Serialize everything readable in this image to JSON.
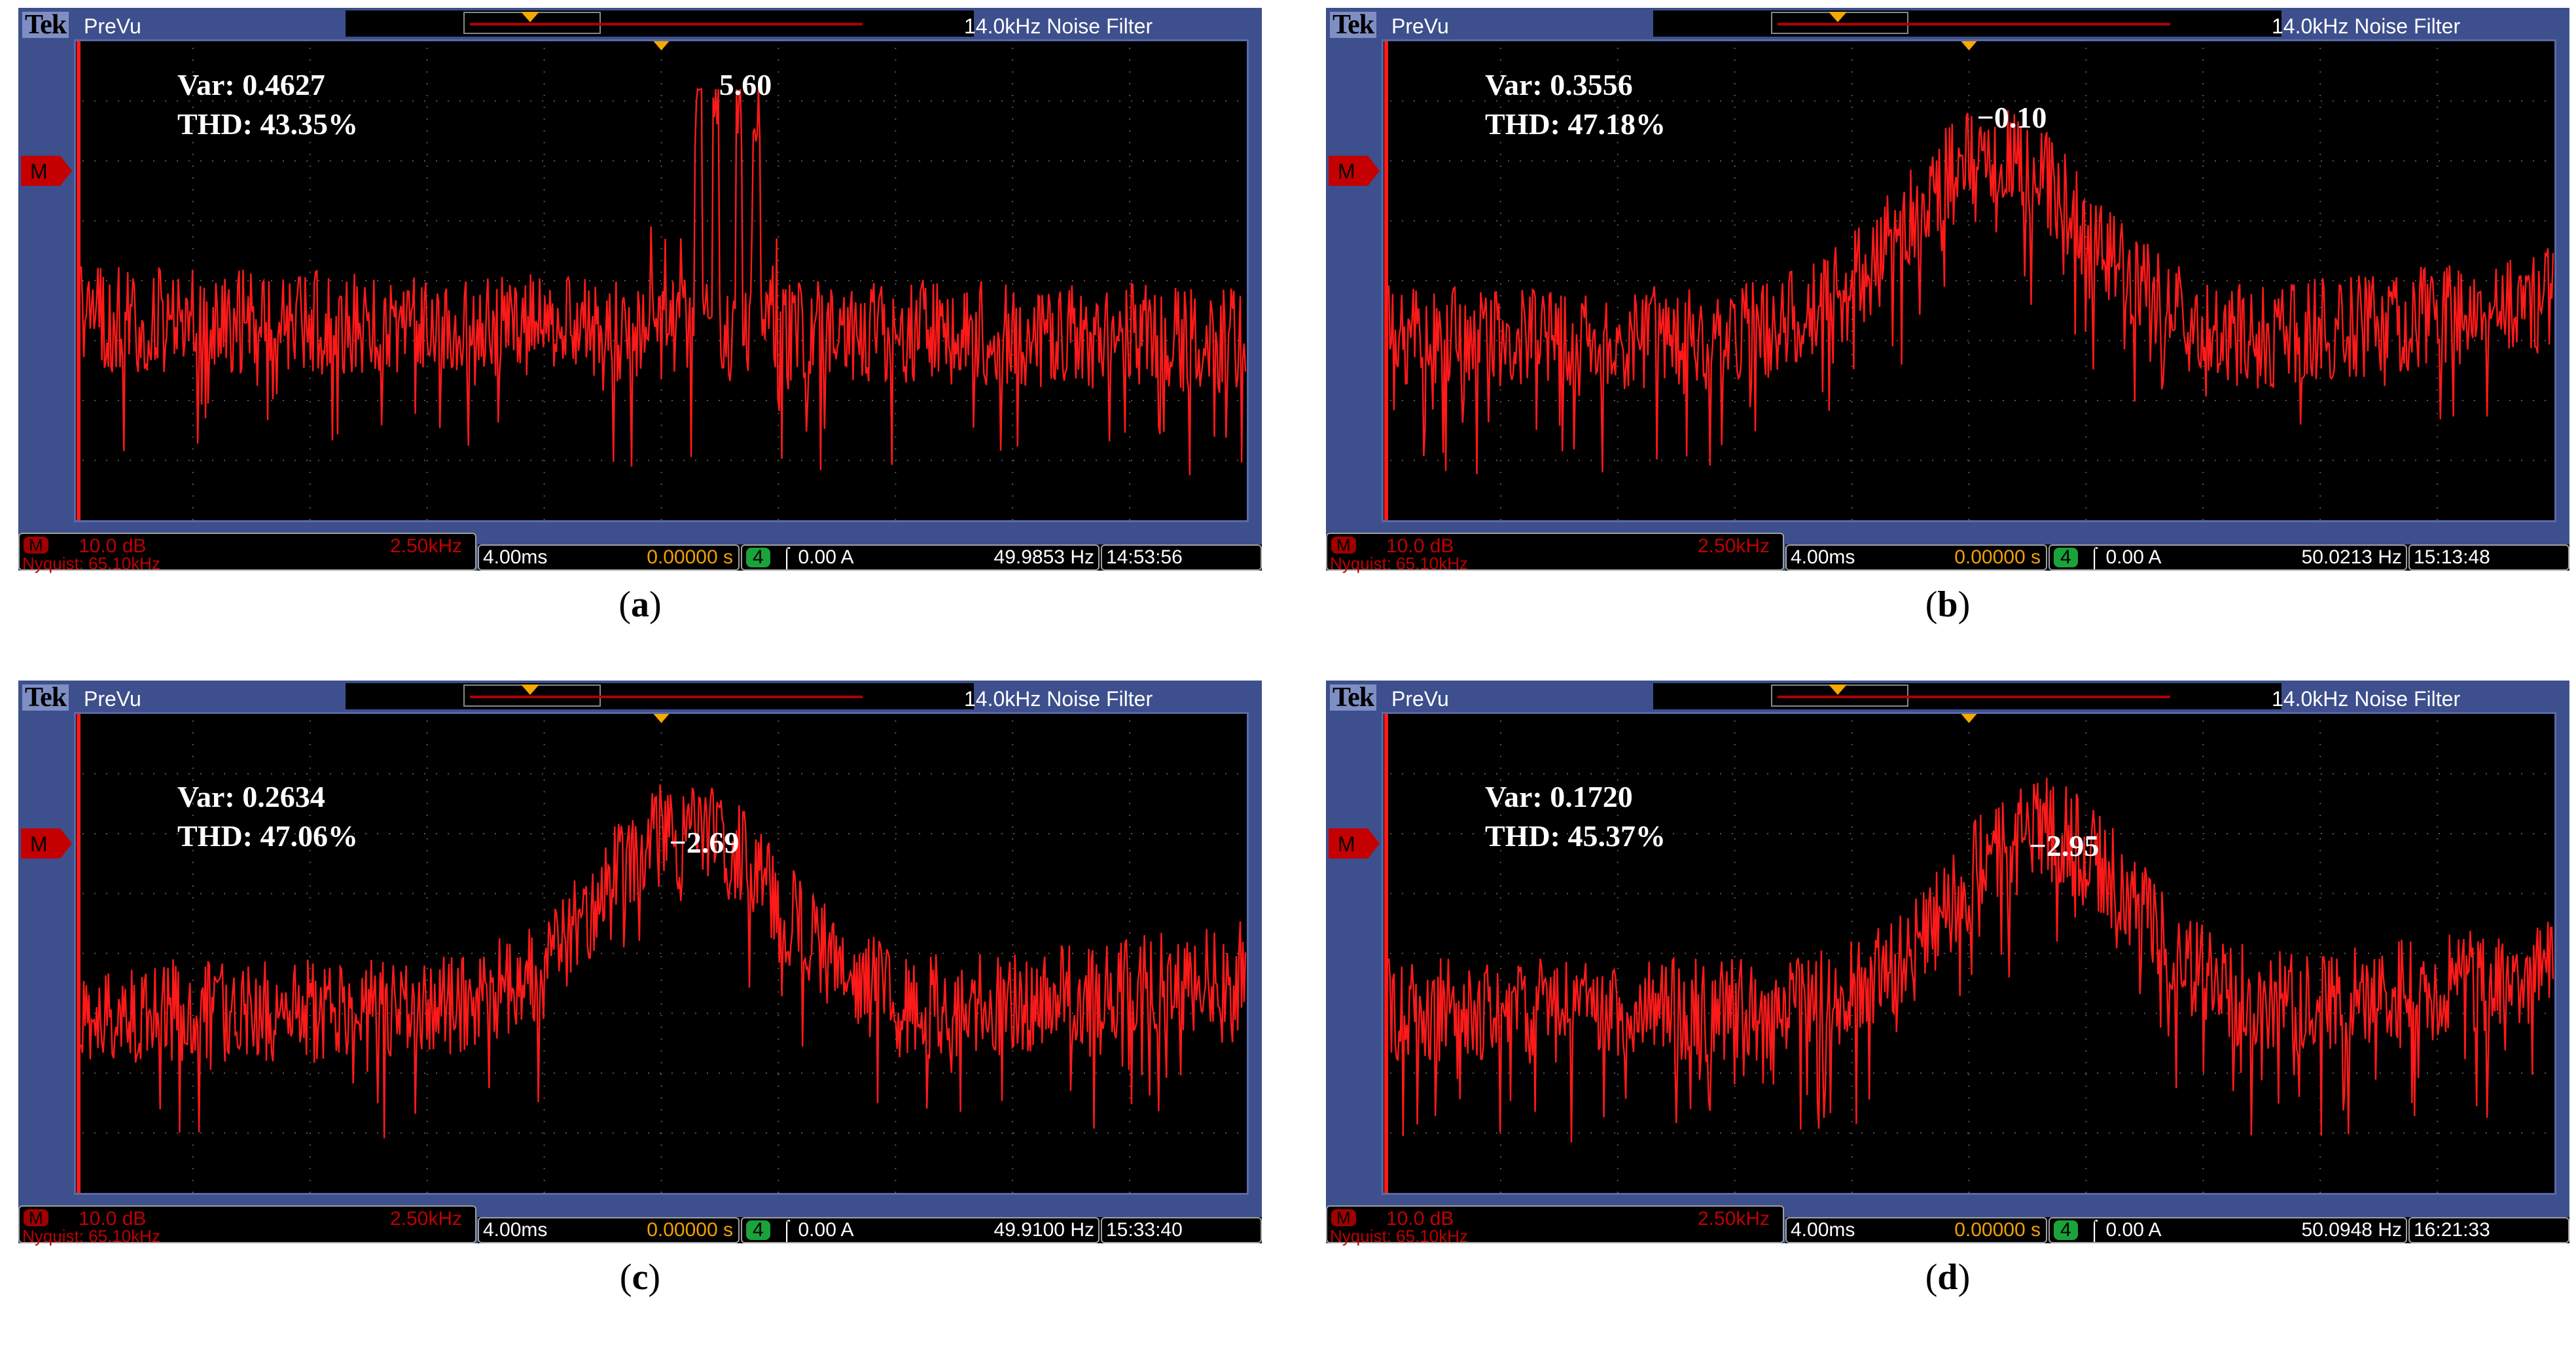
{
  "panels": [
    {
      "label": "a",
      "header": {
        "brand": "Tek",
        "mode": "PreVu",
        "filter": "14.0kHz  Noise Filter"
      },
      "var": "Var: 0.4627",
      "thd": "THD: 43.35%",
      "peak_label": "5.60",
      "info": {
        "marker": "M",
        "scale": "10.0 dB",
        "span": "2.50kHz",
        "nyquist": "Nyquist: 65.10kHz"
      },
      "status": {
        "timebase": "4.00ms",
        "delay": "0.00000 s",
        "channel": "4",
        "trigger": "⌠ 0.00 A",
        "frequency": "49.9853 Hz",
        "clock": "14:53:56"
      }
    },
    {
      "label": "b",
      "header": {
        "brand": "Tek",
        "mode": "PreVu",
        "filter": "14.0kHz  Noise Filter"
      },
      "var": "Var: 0.3556",
      "thd": "THD: 47.18%",
      "peak_label": "−0.10",
      "info": {
        "marker": "M",
        "scale": "10.0 dB",
        "span": "2.50kHz",
        "nyquist": "Nyquist: 65.10kHz"
      },
      "status": {
        "timebase": "4.00ms",
        "delay": "0.00000 s",
        "channel": "4",
        "trigger": "⌠ 0.00 A",
        "frequency": "50.0213 Hz",
        "clock": "15:13:48"
      }
    },
    {
      "label": "c",
      "header": {
        "brand": "Tek",
        "mode": "PreVu",
        "filter": "14.0kHz  Noise Filter"
      },
      "var": "Var: 0.2634",
      "thd": "THD: 47.06%",
      "peak_label": "−2.69",
      "info": {
        "marker": "M",
        "scale": "10.0 dB",
        "span": "2.50kHz",
        "nyquist": "Nyquist: 65.10kHz"
      },
      "status": {
        "timebase": "4.00ms",
        "delay": "0.00000 s",
        "channel": "4",
        "trigger": "⌠ 0.00 A",
        "frequency": "49.9100 Hz",
        "clock": "15:33:40"
      }
    },
    {
      "label": "d",
      "header": {
        "brand": "Tek",
        "mode": "PreVu",
        "filter": "14.0kHz  Noise Filter"
      },
      "var": "Var: 0.1720",
      "thd": "THD: 45.37%",
      "peak_label": "−2.95",
      "info": {
        "marker": "M",
        "scale": "10.0 dB",
        "span": "2.50kHz",
        "nyquist": "Nyquist: 65.10kHz"
      },
      "status": {
        "timebase": "4.00ms",
        "delay": "0.00000 s",
        "channel": "4",
        "trigger": "⌠ 0.00 A",
        "frequency": "50.0948 Hz",
        "clock": "16:21:33"
      }
    }
  ],
  "colors": {
    "trace": "#ff1a1a",
    "grid": "#3a3a3a",
    "frame": "#3d4f8c",
    "text": "#ffffff"
  },
  "chart_data": [
    {
      "type": "line",
      "panel": "a",
      "title": "",
      "peak_value": 5.6,
      "peak_at": 0.55,
      "shape": "narrow-peaks",
      "grid": true
    },
    {
      "type": "line",
      "panel": "b",
      "title": "",
      "peak_value": -0.1,
      "peak_at": 0.52,
      "shape": "broad-hump",
      "grid": true
    },
    {
      "type": "line",
      "panel": "c",
      "title": "",
      "peak_value": -2.69,
      "peak_at": 0.52,
      "shape": "broad-hump",
      "grid": true
    },
    {
      "type": "line",
      "panel": "d",
      "title": "",
      "peak_value": -2.95,
      "peak_at": 0.56,
      "shape": "broad-hump",
      "grid": true
    }
  ]
}
